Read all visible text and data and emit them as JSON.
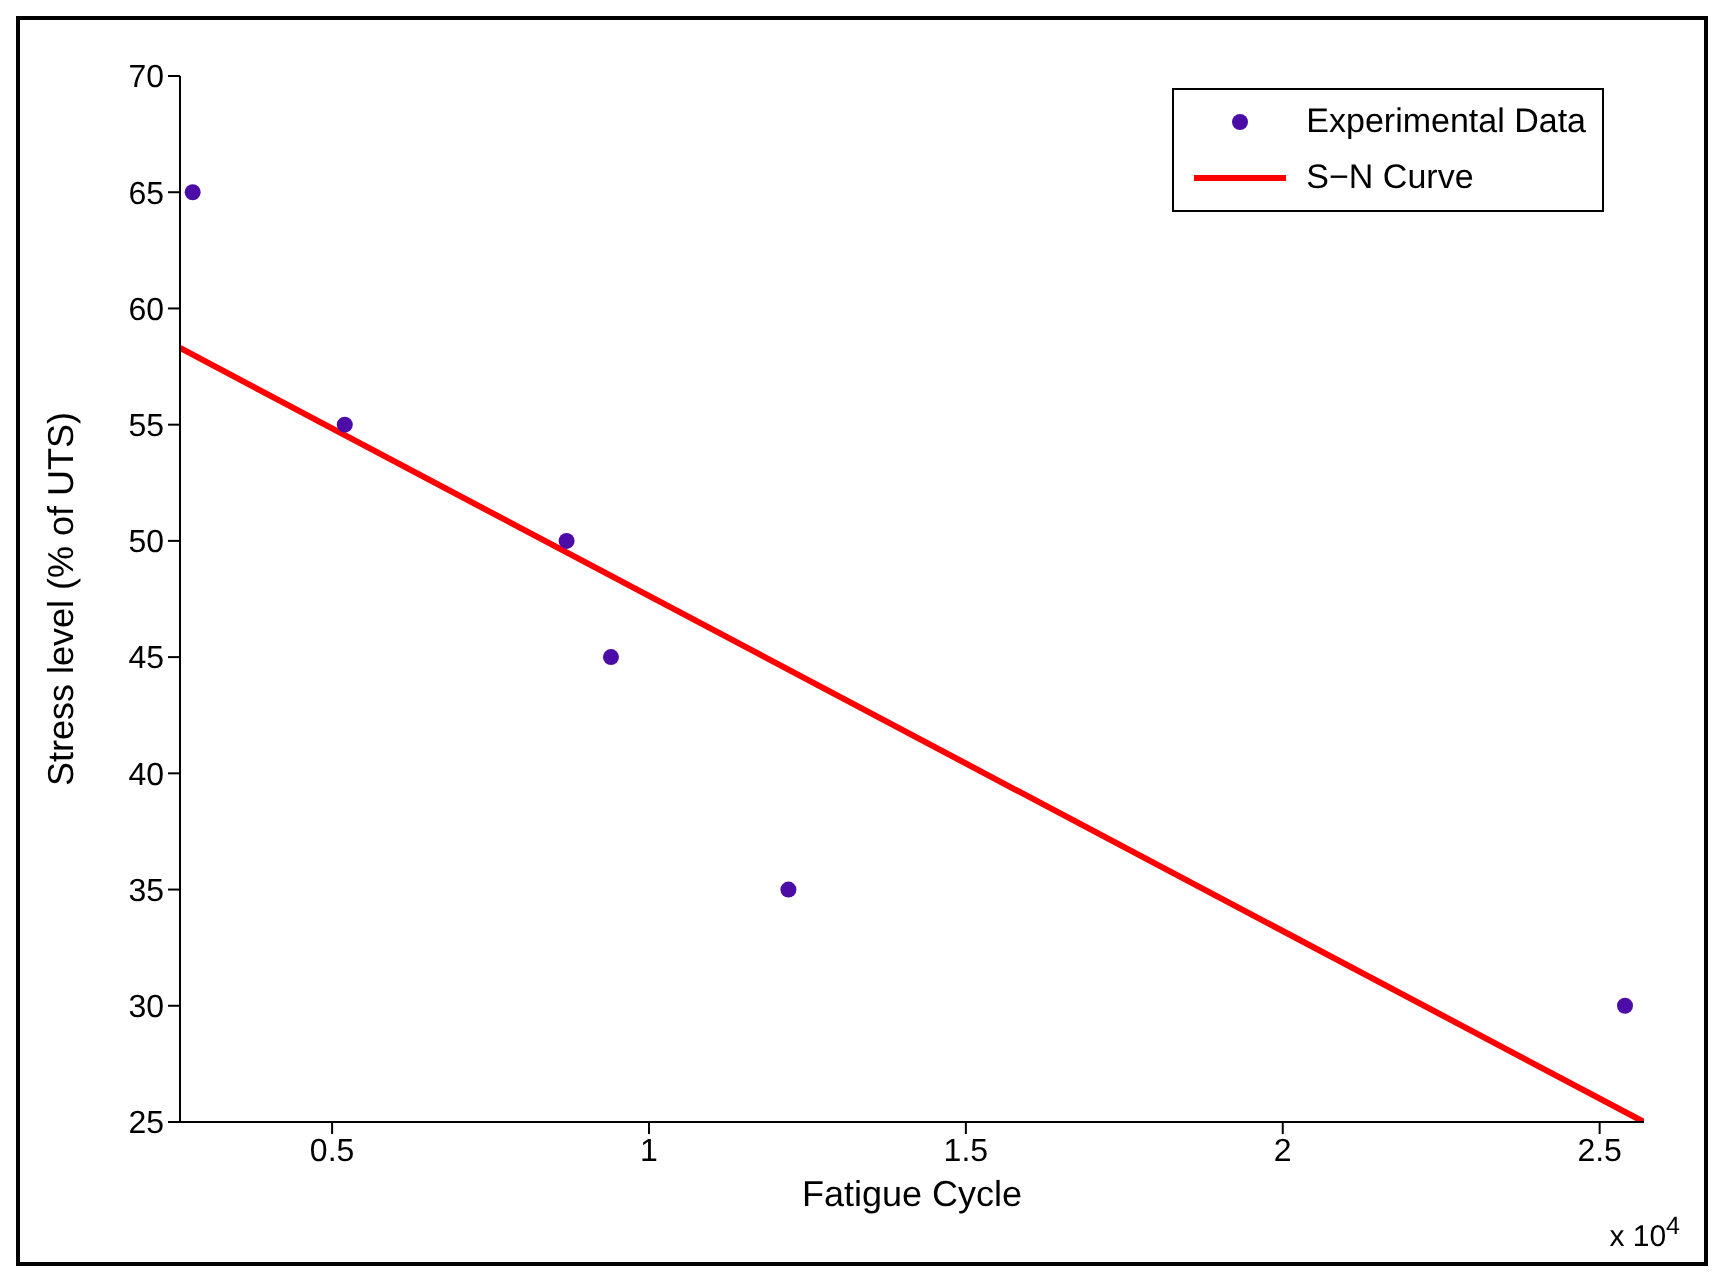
{
  "chart_data": {
    "type": "scatter",
    "xlabel": "Fatigue Cycle",
    "ylabel": "Stress level  (% of UTS)",
    "annotations": [
      "x 10$^{4}$"
    ],
    "xlim": [
      0.26,
      2.57
    ],
    "xticks": [
      0.5,
      1,
      1.5,
      2,
      2.5
    ],
    "ylim": [
      25,
      70
    ],
    "yticks": [
      25,
      30,
      35,
      40,
      45,
      50,
      55,
      60,
      65,
      70
    ],
    "legend": "top right",
    "series": [
      {
        "name": "Experimental Data",
        "marker": "circle",
        "color": "#4b0ca8",
        "x": [
          0.28,
          0.52,
          0.87,
          0.94,
          1.22,
          2.54
        ],
        "values": [
          65,
          55,
          50,
          45,
          35,
          30
        ]
      },
      {
        "name": "S−N Curve",
        "type": "line",
        "color": "#ff0000",
        "x": [
          0.26,
          2.57
        ],
        "values": [
          58.3,
          25
        ]
      }
    ]
  }
}
